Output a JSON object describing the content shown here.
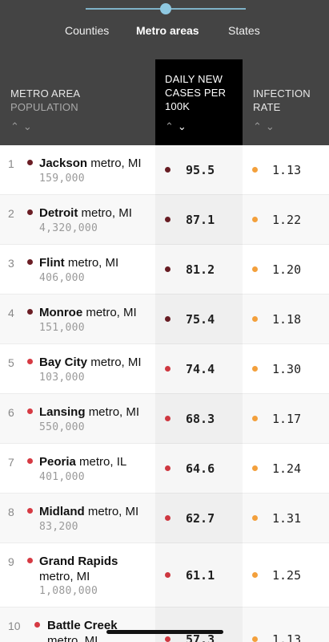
{
  "tabs": [
    "Counties",
    "Metro areas",
    "States"
  ],
  "active_tab": "Metro areas",
  "header": {
    "metro_area": "METRO AREA",
    "population": "POPULATION",
    "daily_cases": "DAILY NEW CASES PER 100K",
    "infection_rate": "INFECTION RATE",
    "sort_up": "⌃",
    "sort_down": "⌄"
  },
  "colors": {
    "dark_marker": "#6b1e25",
    "red_marker": "#d63a43",
    "rate_marker": "#f3a03c",
    "header_bg": "#444444",
    "active_col_bg": "#000000"
  },
  "rows": [
    {
      "rank": "1",
      "name": "Jackson",
      "suffix": "metro, MI",
      "population": "159,000",
      "cases": "95.5",
      "rate": "1.13",
      "level": "dark"
    },
    {
      "rank": "2",
      "name": "Detroit",
      "suffix": "metro, MI",
      "population": "4,320,000",
      "cases": "87.1",
      "rate": "1.22",
      "level": "dark"
    },
    {
      "rank": "3",
      "name": "Flint",
      "suffix": "metro, MI",
      "population": "406,000",
      "cases": "81.2",
      "rate": "1.20",
      "level": "dark"
    },
    {
      "rank": "4",
      "name": "Monroe",
      "suffix": "metro, MI",
      "population": "151,000",
      "cases": "75.4",
      "rate": "1.18",
      "level": "dark"
    },
    {
      "rank": "5",
      "name": "Bay City",
      "suffix": "metro, MI",
      "population": "103,000",
      "cases": "74.4",
      "rate": "1.30",
      "level": "red"
    },
    {
      "rank": "6",
      "name": "Lansing",
      "suffix": "metro, MI",
      "population": "550,000",
      "cases": "68.3",
      "rate": "1.17",
      "level": "red"
    },
    {
      "rank": "7",
      "name": "Peoria",
      "suffix": "metro, IL",
      "population": "401,000",
      "cases": "64.6",
      "rate": "1.24",
      "level": "red"
    },
    {
      "rank": "8",
      "name": "Midland",
      "suffix": "metro, MI",
      "population": "83,200",
      "cases": "62.7",
      "rate": "1.31",
      "level": "red"
    },
    {
      "rank": "9",
      "name": "Grand Rapids",
      "suffix": "metro, MI",
      "population": "1,080,000",
      "cases": "61.1",
      "rate": "1.25",
      "level": "red"
    },
    {
      "rank": "10",
      "name": "Battle Creek",
      "suffix": "metro, MI",
      "population": "",
      "cases": "57.3",
      "rate": "1.13",
      "level": "red"
    }
  ]
}
